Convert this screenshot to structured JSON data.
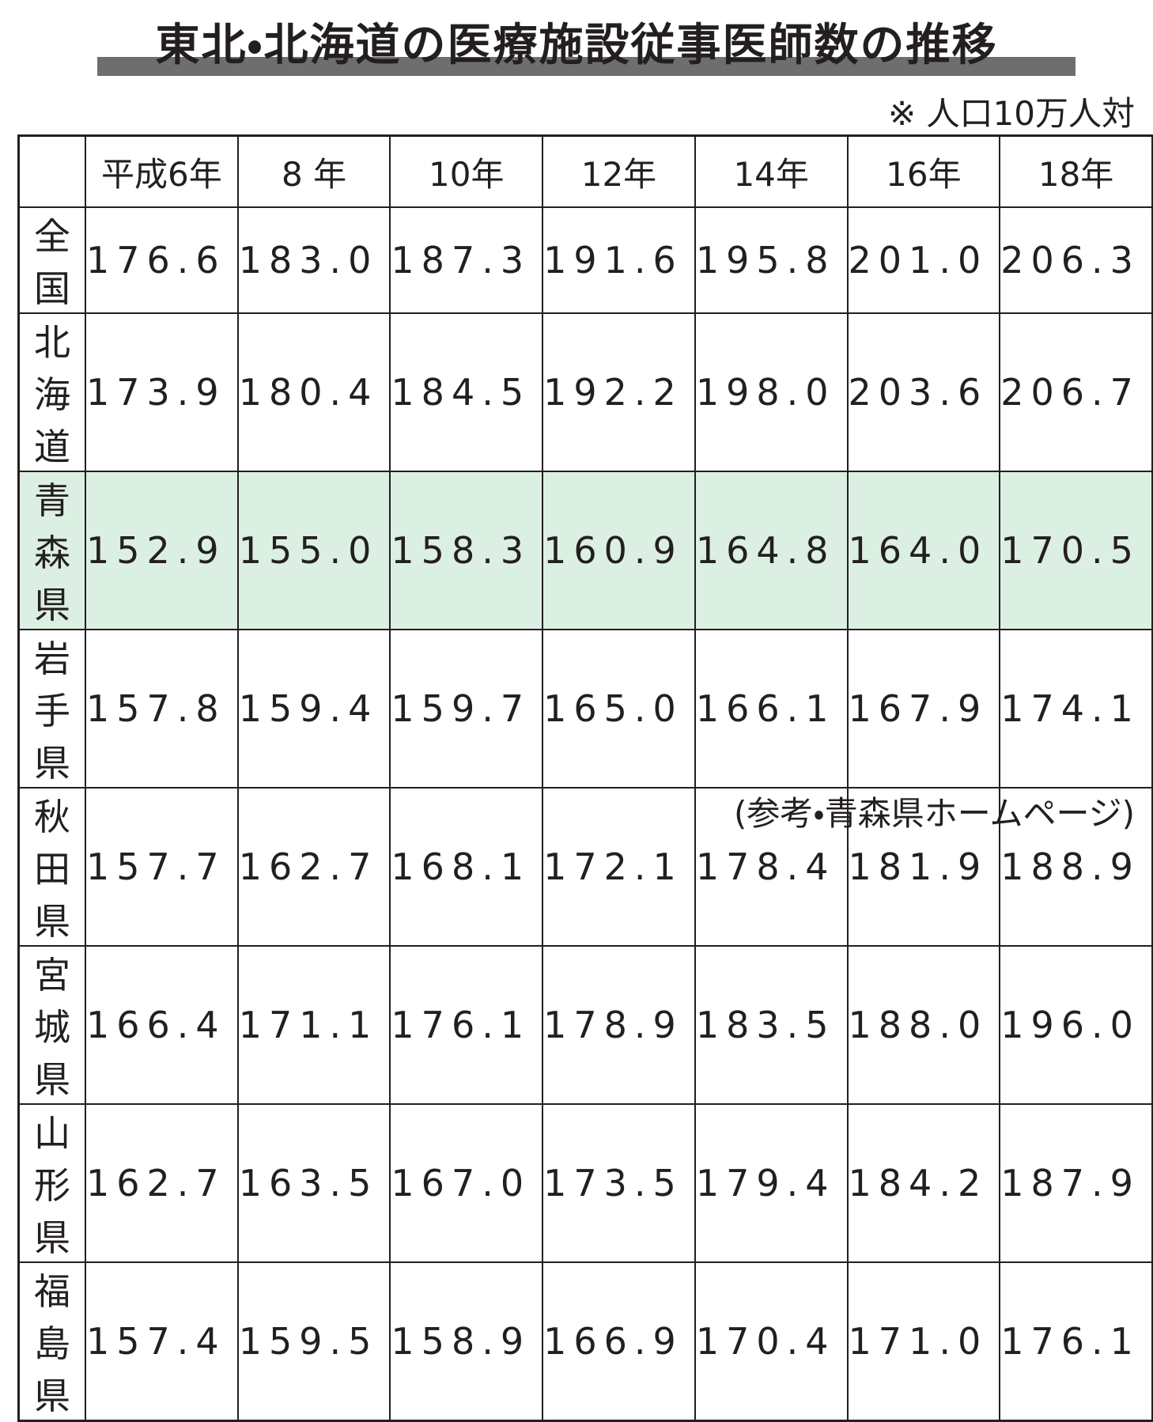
{
  "header": {
    "title": "東北・北海道の医療施設従事医師数の推移",
    "note": "※ 人口10万人対"
  },
  "table": {
    "columns": [
      "",
      "平成6年",
      "8 年",
      "10年",
      "12年",
      "14年",
      "16年",
      "18年"
    ],
    "rows": [
      [
        "全国",
        "176.6",
        "183.0",
        "187.3",
        "191.6",
        "195.8",
        "201.0",
        "206.3"
      ],
      [
        "北海道",
        "173.9",
        "180.4",
        "184.5",
        "192.2",
        "198.0",
        "203.6",
        "206.7"
      ],
      [
        "青森県",
        "152.9",
        "155.0",
        "158.3",
        "160.9",
        "164.8",
        "164.0",
        "170.5"
      ],
      [
        "岩手県",
        "157.8",
        "159.4",
        "159.7",
        "165.0",
        "166.1",
        "167.9",
        "174.1"
      ],
      [
        "秋田県",
        "157.7",
        "162.7",
        "168.1",
        "172.1",
        "178.4",
        "181.9",
        "188.9"
      ],
      [
        "宮城県",
        "166.4",
        "171.1",
        "176.1",
        "178.9",
        "183.5",
        "188.0",
        "196.0"
      ],
      [
        "山形県",
        "162.7",
        "163.5",
        "167.0",
        "173.5",
        "179.4",
        "184.2",
        "187.9"
      ],
      [
        "福島県",
        "157.4",
        "159.5",
        "158.9",
        "166.9",
        "170.4",
        "171.0",
        "176.1"
      ]
    ]
  },
  "footer": {
    "source": "(参考・青森県ホームページ)"
  }
}
